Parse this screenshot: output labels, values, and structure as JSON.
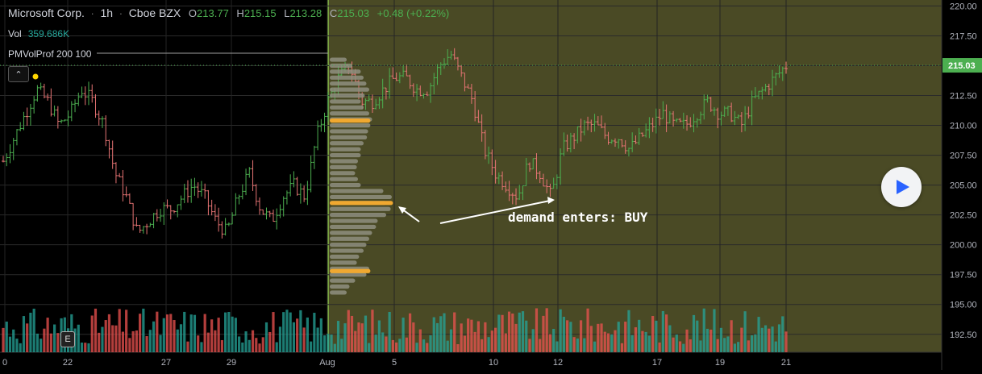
{
  "legend": {
    "symbol": "Microsoft Corp.",
    "interval": "1h",
    "exchange": "Cboe BZX",
    "open_key": "O",
    "open": "213.77",
    "high_key": "H",
    "high": "215.15",
    "low_key": "L",
    "low": "213.28",
    "close_key": "C",
    "close": "215.03",
    "change": "+0.48 (+0.22%)"
  },
  "volume_row": {
    "label": "Vol",
    "value": "359.686K"
  },
  "indicator_row": {
    "label": "PMVolProf 200 100"
  },
  "collapse_icon": "chevron-up-icon",
  "play_icon": "play-icon",
  "earnings_marker": "E",
  "annotation": {
    "text": "demand enters: BUY"
  },
  "colors": {
    "up": "#4caf50",
    "down": "#e57373",
    "vol_up": "#26a69a",
    "vol_down": "#ef5350",
    "highlight_bg": "#4a4a25",
    "profile_bar": "#8f8f80",
    "profile_poc": "#f0a830",
    "last_price_tag": "#4caf50"
  },
  "chart_data": {
    "type": "ohlc",
    "y_axis": {
      "ticks": [
        "192.50",
        "195.00",
        "197.50",
        "200.00",
        "202.50",
        "205.00",
        "207.50",
        "210.00",
        "212.50",
        "215.00",
        "217.50",
        "220.00"
      ],
      "range": [
        191.0,
        220.5
      ],
      "last_price": "215.03"
    },
    "x_axis": {
      "ticks": [
        "0",
        "22",
        "27",
        "29",
        "Aug",
        "5",
        "10",
        "12",
        "17",
        "19",
        "21"
      ]
    },
    "price_path": [
      207,
      209,
      211,
      213,
      212,
      210,
      211,
      213,
      212,
      210,
      206,
      204,
      201,
      202,
      203,
      203,
      204,
      205,
      204,
      202,
      201,
      204,
      206,
      203,
      202,
      204,
      205,
      204,
      209,
      212,
      214,
      215,
      212,
      212,
      213,
      214,
      214,
      213,
      213,
      215,
      216,
      214,
      212,
      208,
      206,
      205,
      204,
      207,
      206,
      204,
      208,
      209,
      210,
      210,
      209,
      209,
      208,
      209,
      210,
      211,
      210,
      210,
      211,
      212,
      211,
      211,
      210,
      212,
      213,
      214,
      215
    ]
  }
}
